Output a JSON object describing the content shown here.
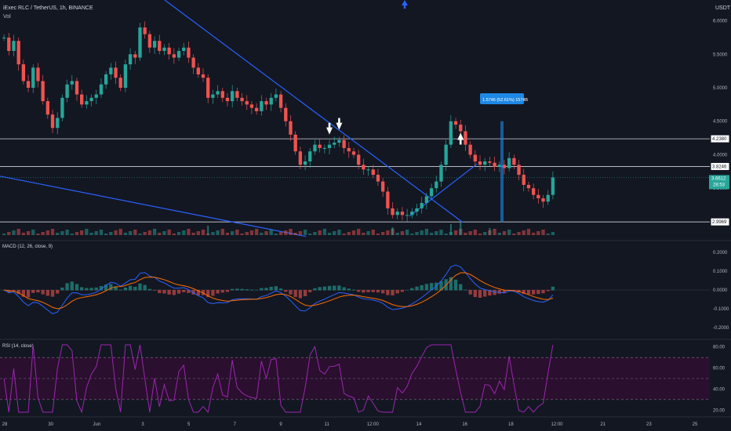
{
  "header": {
    "symbol_line": "iExec RLC / TetherUS, 1h, BINANCE",
    "vol_label": "Vol",
    "currency": "USDT"
  },
  "colors": {
    "background": "#131722",
    "up": "#26a69a",
    "down": "#ef5350",
    "trendline": "#2962ff",
    "hline": "#d1d4dc",
    "macd_line": "#2962ff",
    "signal_line": "#ff6d00",
    "rsi_line": "#9c27b0",
    "rsi_band": "#2a0f2e",
    "price_tag_green": "#26a69a",
    "measure_label": "#1e88e5"
  },
  "chart_data": {
    "type": "candlestick",
    "main_pane": {
      "y_ticks": [
        "6.0000",
        "5.5000",
        "5.0000",
        "4.5000",
        "4.0000",
        "3.5000",
        "3.0000"
      ],
      "y_range": [
        2.8,
        6.1
      ],
      "horizontal_levels": [
        {
          "value": 4.238,
          "label": "4.2380"
        },
        {
          "value": 3.8246,
          "label": "3.8246"
        },
        {
          "value": 2.9969,
          "label": "2.9969"
        }
      ],
      "current_price": {
        "value": 3.6612,
        "label": "3.6612",
        "countdown": "28:53"
      },
      "close_series": [
        5.75,
        5.55,
        5.7,
        5.35,
        5.1,
        5.0,
        5.3,
        5.1,
        4.8,
        4.6,
        4.4,
        4.55,
        4.85,
        5.05,
        5.1,
        4.9,
        4.75,
        4.8,
        4.85,
        4.9,
        5.05,
        5.2,
        5.3,
        5.15,
        5.0,
        5.35,
        5.5,
        5.45,
        5.9,
        5.8,
        5.6,
        5.7,
        5.55,
        5.6,
        5.5,
        5.45,
        5.55,
        5.6,
        5.45,
        5.3,
        5.2,
        5.15,
        4.85,
        4.9,
        4.95,
        4.85,
        4.8,
        4.95,
        4.85,
        4.8,
        4.75,
        4.7,
        4.65,
        4.8,
        4.75,
        4.85,
        4.9,
        4.7,
        4.5,
        4.3,
        4.05,
        3.85,
        3.9,
        4.05,
        4.15,
        4.1,
        4.1,
        4.15,
        4.18,
        4.22,
        4.1,
        4.05,
        4.0,
        3.85,
        3.78,
        3.78,
        3.7,
        3.6,
        3.45,
        3.2,
        3.1,
        3.15,
        3.1,
        3.1,
        3.15,
        3.2,
        3.28,
        3.38,
        3.5,
        3.6,
        3.85,
        4.15,
        4.5,
        4.45,
        4.35,
        4.15,
        4.0,
        3.9,
        3.85,
        3.9,
        3.88,
        3.82,
        3.85,
        3.8,
        3.95,
        3.85,
        3.7,
        3.55,
        3.5,
        3.4,
        3.35,
        3.3,
        3.4,
        3.66
      ],
      "volume_spikes": [
        {
          "x_index": 42,
          "height": 12
        },
        {
          "x_index": 80,
          "height": 10
        },
        {
          "x_index": 92,
          "height": 14
        },
        {
          "x_index": 94,
          "height": 16
        },
        {
          "x_index": 100,
          "height": 9
        }
      ],
      "measure_label": "1.5746 (52.61%) 1574B",
      "arrows": [
        {
          "type": "down",
          "x_index": 67
        },
        {
          "type": "down",
          "x_index": 69
        },
        {
          "type": "up",
          "x_index": 94
        }
      ]
    },
    "macd_pane": {
      "label": "MACD (12, 26, close, 9)",
      "y_ticks": [
        "0.2000",
        "0.1000",
        "0.0000",
        "-0.1000",
        "-0.2000"
      ],
      "y_range": [
        -0.25,
        0.25
      ]
    },
    "rsi_pane": {
      "label": "RSI (14, close)",
      "y_ticks": [
        "80.00",
        "60.00",
        "40.00",
        "20.00"
      ],
      "y_range": [
        15,
        85
      ],
      "upper_band": 70,
      "lower_band": 30,
      "mid_line": 50
    },
    "x_ticks": [
      "28",
      "30",
      "Jun",
      "3",
      "5",
      "7",
      "9",
      "11",
      "12:00",
      "14",
      "16",
      "18",
      "12:00",
      "21",
      "23",
      "25"
    ]
  }
}
